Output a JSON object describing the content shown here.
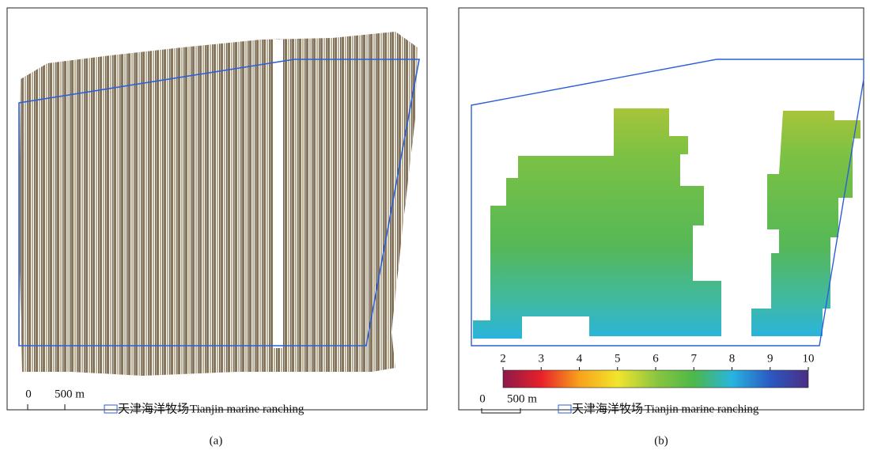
{
  "panels": [
    {
      "caption": "(a)",
      "scale_bar": {
        "zero": "0",
        "length": "500 m"
      },
      "legend": {
        "label_zh": "天津海洋牧场",
        "label_en": "Tianjin marine ranching"
      }
    },
    {
      "caption": "(b)",
      "scale_bar": {
        "zero": "0",
        "length": "500 m"
      },
      "legend": {
        "label_zh": "天津海洋牧场",
        "label_en": "Tianjin marine ranching"
      },
      "colorbar": {
        "range": [
          2,
          10
        ],
        "ticks": [
          2,
          3,
          4,
          5,
          6,
          7,
          8,
          9,
          10
        ],
        "colors": [
          "#8b1a4a",
          "#e8202a",
          "#f7a21b",
          "#f2e52c",
          "#8cc63f",
          "#4cb849",
          "#27b5e0",
          "#2b59c3",
          "#4b2d83"
        ]
      }
    }
  ]
}
